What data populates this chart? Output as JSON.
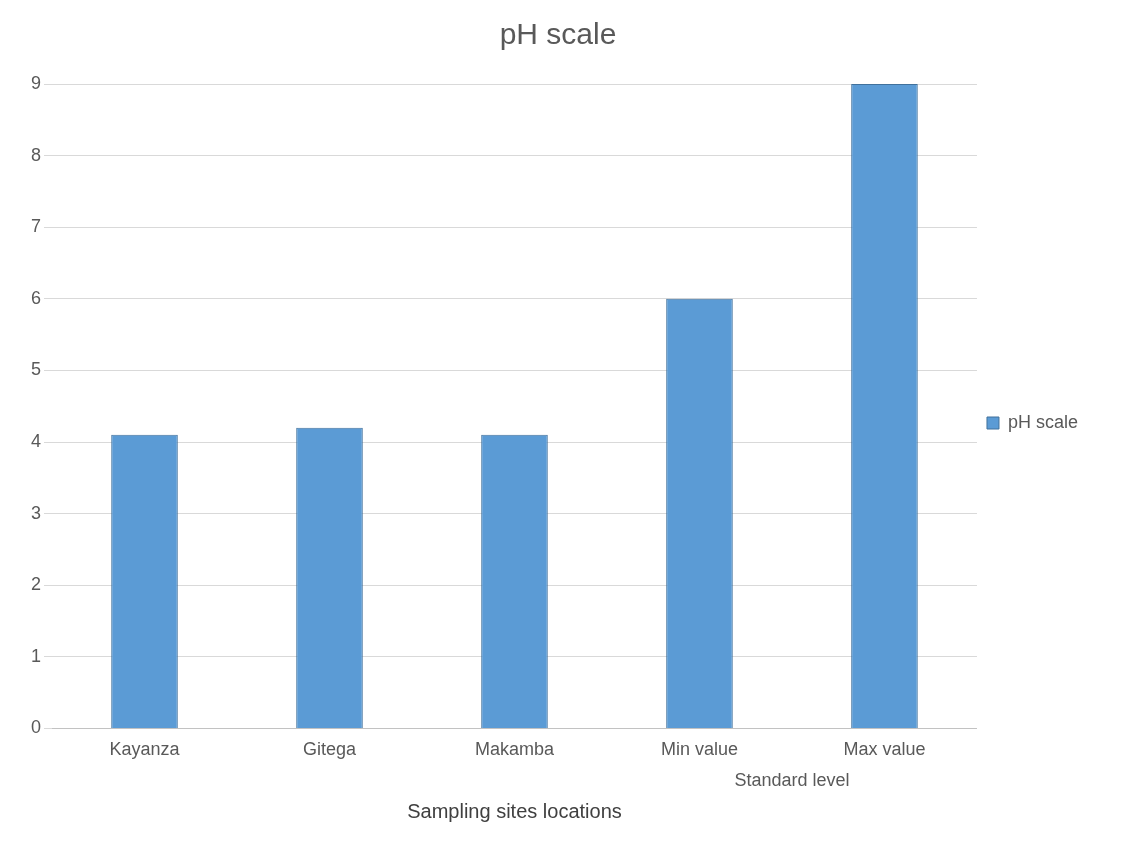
{
  "chart_data": {
    "type": "bar",
    "title": "pH scale",
    "xlabel": "Sampling sites locations",
    "categories": [
      "Kayanza",
      "Gitega",
      "Makamba",
      "Min value",
      "Max value"
    ],
    "series": [
      {
        "name": "pH scale",
        "color": "#5b9bd5",
        "values": [
          4.1,
          4.2,
          4.1,
          6,
          9
        ]
      }
    ],
    "ylim": [
      0,
      9
    ],
    "yticks": [
      0,
      1,
      2,
      3,
      4,
      5,
      6,
      7,
      8,
      9
    ],
    "grid": "y",
    "legend": "right",
    "annotations": [
      "Standard level"
    ]
  }
}
